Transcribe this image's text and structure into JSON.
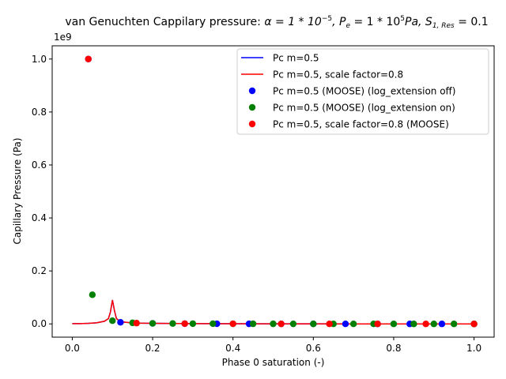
{
  "chart_data": {
    "type": "line",
    "title": {
      "prefix": "van Genuchten Cappilary pressure: ",
      "alpha": "α = 1 * 10",
      "alpha_exp": "−5",
      "pe": ", P",
      "pe_sub": "e",
      "pe_val": " = 1 * 10",
      "pe_exp": "5",
      "pe_unit": "Pa, S",
      "s_sub": "1, Res",
      "s_val": " = 0.1"
    },
    "xlabel": "Phase 0 saturation (-)",
    "ylabel": "Capillary Pressure (Pa)",
    "y_multiplier": "1e9",
    "xlim": [
      -0.05,
      1.05
    ],
    "ylim": [
      -0.05,
      1.05
    ],
    "xticks": [
      0.0,
      0.2,
      0.4,
      0.6,
      0.8,
      1.0
    ],
    "xtick_labels": [
      "0.0",
      "0.2",
      "0.4",
      "0.6",
      "0.8",
      "1.0"
    ],
    "yticks": [
      0.0,
      0.2,
      0.4,
      0.6,
      0.8,
      1.0
    ],
    "ytick_labels": [
      "0.0",
      "0.2",
      "0.4",
      "0.6",
      "0.8",
      "1.0"
    ],
    "grid": false,
    "legend_position": "top-right",
    "series": [
      {
        "name": "Pc m=0.5",
        "kind": "line",
        "color": "#0000ff",
        "x": [
          0.0,
          0.02,
          0.04,
          0.06,
          0.08,
          0.09,
          0.095,
          0.1,
          0.105,
          0.11,
          0.12,
          0.14,
          0.16,
          0.2,
          0.3,
          0.4,
          0.5,
          0.6,
          0.7,
          0.8,
          0.9,
          1.0
        ],
        "y": [
          0.001,
          0.001,
          0.002,
          0.004,
          0.01,
          0.02,
          0.045,
          0.09,
          0.05,
          0.02,
          0.008,
          0.005,
          0.003,
          0.002,
          0.001,
          0.0005,
          0.0003,
          0.0002,
          0.0001,
          0.0001,
          0.0,
          0.0
        ]
      },
      {
        "name": "Pc m=0.5, scale factor=0.8",
        "kind": "line",
        "color": "#ff0000",
        "x": [
          0.0,
          0.02,
          0.04,
          0.06,
          0.08,
          0.09,
          0.095,
          0.1,
          0.105,
          0.11,
          0.12,
          0.14,
          0.16,
          0.2,
          0.3,
          0.4,
          0.5,
          0.6,
          0.7,
          0.8,
          0.9,
          1.0
        ],
        "y": [
          0.001,
          0.001,
          0.002,
          0.004,
          0.01,
          0.02,
          0.045,
          0.09,
          0.05,
          0.02,
          0.008,
          0.005,
          0.003,
          0.002,
          0.001,
          0.0005,
          0.0003,
          0.0002,
          0.0001,
          0.0001,
          0.0,
          0.0
        ]
      },
      {
        "name": "Pc m=0.5 (MOOSE) (log_extension off)",
        "kind": "scatter",
        "color": "#0000ff",
        "x": [
          0.04,
          0.12,
          0.2,
          0.28,
          0.36,
          0.44,
          0.52,
          0.6,
          0.68,
          0.76,
          0.84,
          0.92,
          1.0
        ],
        "y": [
          1.0,
          0.006,
          0.002,
          0.001,
          0.0005,
          0.0003,
          0.0002,
          0.0001,
          0.0001,
          0.0,
          0.0,
          0.0,
          0.0
        ]
      },
      {
        "name": "Pc m=0.5 (MOOSE) (log_extension on)",
        "kind": "scatter",
        "color": "#008000",
        "x": [
          0.05,
          0.1,
          0.15,
          0.2,
          0.25,
          0.3,
          0.35,
          0.4,
          0.45,
          0.5,
          0.55,
          0.6,
          0.65,
          0.7,
          0.75,
          0.8,
          0.85,
          0.9,
          0.95,
          1.0
        ],
        "y": [
          0.11,
          0.012,
          0.004,
          0.002,
          0.0015,
          0.001,
          0.0008,
          0.0005,
          0.0004,
          0.0003,
          0.0002,
          0.0002,
          0.0001,
          0.0001,
          0.0001,
          0.0,
          0.0,
          0.0,
          0.0,
          0.0
        ]
      },
      {
        "name": "Pc m=0.5, scale factor=0.8 (MOOSE)",
        "kind": "scatter",
        "color": "#ff0000",
        "x": [
          0.04,
          0.16,
          0.28,
          0.4,
          0.52,
          0.64,
          0.76,
          0.88,
          1.0
        ],
        "y": [
          1.0,
          0.003,
          0.001,
          0.0005,
          0.0002,
          0.0001,
          0.0001,
          0.0,
          0.0
        ]
      }
    ]
  }
}
